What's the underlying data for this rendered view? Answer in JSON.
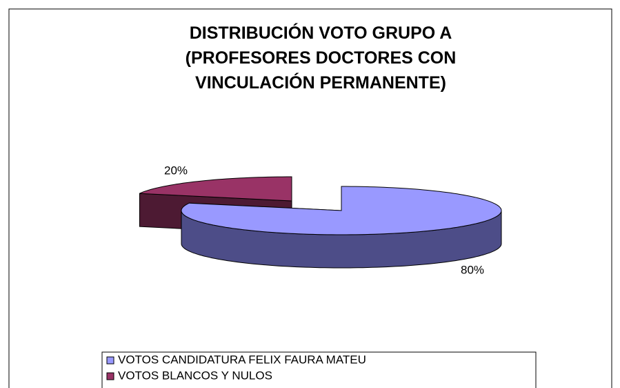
{
  "chart_data": {
    "type": "pie3d",
    "title": "DISTRIBUCIÓN VOTO GRUPO A (PROFESORES DOCTORES CON VINCULACIÓN PERMANENTE)",
    "categories": [
      "VOTOS CANDIDATURA FELIX FAURA MATEU",
      "VOTOS BLANCOS Y NULOS"
    ],
    "values": [
      80,
      20
    ],
    "value_labels": [
      "80%",
      "20%"
    ],
    "colors": [
      "#9999ff",
      "#993366"
    ],
    "side_colors": [
      "#4d4d88",
      "#4d1a33"
    ]
  }
}
